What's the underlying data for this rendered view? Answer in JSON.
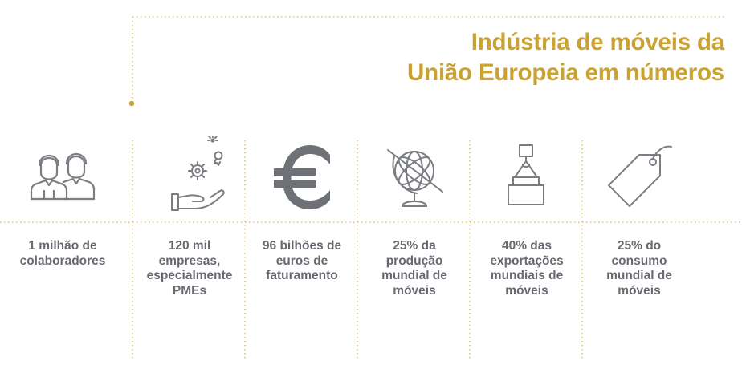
{
  "title": {
    "line1": "Indústria de móveis da",
    "line2": "União Europeia em números"
  },
  "colors": {
    "accent": "#c9a232",
    "text": "#666a70",
    "icon": "#7a7d82"
  },
  "items": [
    {
      "icon": "people-icon",
      "lines": [
        "1 milhão de",
        "colaboradores"
      ]
    },
    {
      "icon": "hand-gear-icon",
      "lines": [
        "120 mil",
        "empresas,",
        "especialmente",
        "PMEs"
      ]
    },
    {
      "icon": "euro-icon",
      "lines": [
        "96 bilhões de",
        "euros de",
        "faturamento"
      ]
    },
    {
      "icon": "globe-icon",
      "lines": [
        "25% da",
        "produção",
        "mundial de",
        "móveis"
      ]
    },
    {
      "icon": "crane-box-icon",
      "lines": [
        "40% das",
        "exportações",
        "mundiais de",
        "móveis"
      ]
    },
    {
      "icon": "price-tag-icon",
      "lines": [
        "25% do",
        "consumo",
        "mundial de",
        "móveis"
      ]
    }
  ]
}
